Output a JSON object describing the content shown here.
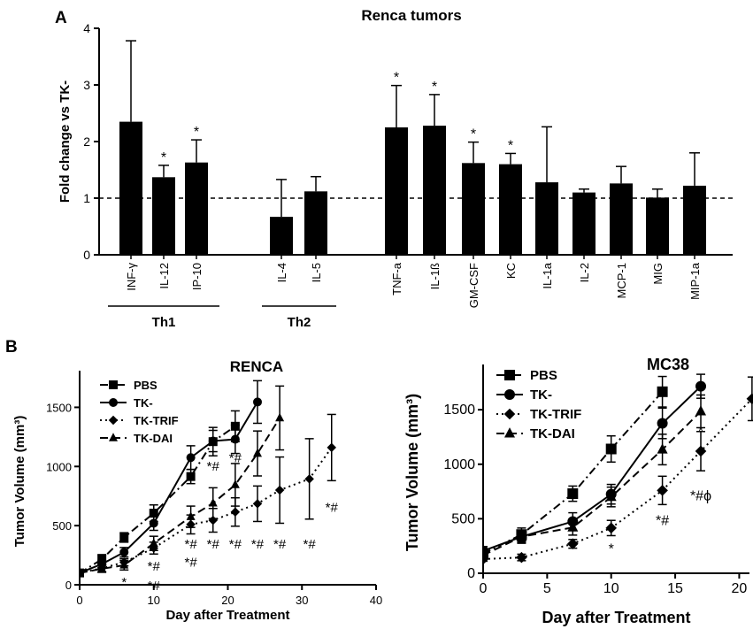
{
  "panel_labels": {
    "a": "A",
    "b": "B"
  },
  "chart_data": [
    {
      "type": "bar",
      "title": "Renca tumors",
      "ylabel": "Fold change vs TK-",
      "ylim": [
        0,
        4
      ],
      "yticks": [
        "0",
        "1",
        "2",
        "3",
        "4"
      ],
      "reference_line": 1,
      "categories": [
        "INF-γ",
        "IL-12",
        "IP-10",
        "IL-4",
        "IL-5",
        "TNF-a",
        "IL-1ß",
        "GM-CSF",
        "KC",
        "IL-1a",
        "IL-2",
        "MCP-1",
        "MIG",
        "MIP-1a"
      ],
      "values": [
        2.35,
        1.37,
        1.63,
        0.67,
        1.12,
        2.25,
        2.28,
        1.62,
        1.6,
        1.28,
        1.1,
        1.26,
        1.01,
        1.22
      ],
      "errors": [
        1.43,
        0.21,
        0.4,
        0.66,
        0.26,
        0.74,
        0.55,
        0.37,
        0.19,
        0.98,
        0.06,
        0.3,
        0.15,
        0.58
      ],
      "significant": [
        false,
        true,
        true,
        false,
        false,
        true,
        true,
        true,
        true,
        false,
        false,
        false,
        false,
        false
      ],
      "star": "*",
      "groups": [
        {
          "label": "Th1",
          "members": [
            "INF-γ",
            "IL-12",
            "IP-10"
          ]
        },
        {
          "label": "Th2",
          "members": [
            "IL-4",
            "IL-5"
          ]
        }
      ],
      "grid": false
    },
    {
      "type": "line",
      "title": "RENCA",
      "xlabel": "Day after Treatment",
      "ylabel": "Tumor Volume (mm³)",
      "xlim": [
        0,
        40
      ],
      "ylim": [
        0,
        1750
      ],
      "xticks": [
        "0",
        "10",
        "20",
        "30",
        "40"
      ],
      "yticks": [
        "0",
        "500",
        "1000",
        "1500"
      ],
      "legend_position": "top-left",
      "series": [
        {
          "name": "PBS",
          "marker": "square",
          "dash": "dash-dot",
          "x": [
            0,
            3,
            6,
            10,
            15,
            18,
            21
          ],
          "y": [
            100,
            215,
            400,
            605,
            915,
            1210,
            1340
          ],
          "err": [
            20,
            40,
            40,
            70,
            60,
            120,
            130
          ]
        },
        {
          "name": "TK-",
          "marker": "circle",
          "dash": "solid",
          "x": [
            0,
            3,
            6,
            10,
            15,
            18,
            21,
            24
          ],
          "y": [
            100,
            175,
            275,
            520,
            1075,
            1215,
            1230,
            1545
          ],
          "err": [
            20,
            30,
            40,
            60,
            100,
            90,
            120,
            180
          ]
        },
        {
          "name": "TK-TRIF",
          "marker": "diamond",
          "dash": "dotted",
          "x": [
            0,
            3,
            6,
            10,
            15,
            18,
            21,
            24,
            27,
            31,
            34
          ],
          "y": [
            100,
            140,
            190,
            310,
            510,
            545,
            615,
            685,
            800,
            895,
            1160
          ],
          "err": [
            20,
            30,
            30,
            50,
            80,
            100,
            120,
            150,
            280,
            340,
            280
          ]
        },
        {
          "name": "TK-DAI",
          "marker": "triangle",
          "dash": "dashed",
          "x": [
            0,
            3,
            6,
            10,
            15,
            18,
            21,
            24,
            27
          ],
          "y": [
            100,
            135,
            165,
            350,
            575,
            690,
            845,
            1110,
            1410
          ],
          "err": [
            20,
            30,
            40,
            60,
            90,
            130,
            180,
            190,
            270
          ]
        }
      ],
      "annotations": [
        {
          "text": "*",
          "x": 6,
          "y": 30
        },
        {
          "text": "*#",
          "x": 10,
          "y": 165
        },
        {
          "text": "*#",
          "x": 10,
          "y": 0
        },
        {
          "text": "*#",
          "x": 15,
          "y": 350
        },
        {
          "text": "*#",
          "x": 15,
          "y": 200
        },
        {
          "text": "*#",
          "x": 18,
          "y": 1010
        },
        {
          "text": "*#",
          "x": 18,
          "y": 350
        },
        {
          "text": "*#",
          "x": 21,
          "y": 1080
        },
        {
          "text": "*#",
          "x": 21,
          "y": 350
        },
        {
          "text": "*#",
          "x": 24,
          "y": 350
        },
        {
          "text": "*#",
          "x": 27,
          "y": 350
        },
        {
          "text": "*#",
          "x": 31,
          "y": 350
        },
        {
          "text": "*#",
          "x": 34,
          "y": 660
        }
      ],
      "grid": false
    },
    {
      "type": "line",
      "title": "MC38",
      "xlabel": "Day after Treatment",
      "ylabel": "Tumor Volume (mm³)",
      "xlim": [
        0,
        20.8
      ],
      "ylim": [
        0,
        1850
      ],
      "xticks": [
        "0",
        "5",
        "10",
        "15",
        "20"
      ],
      "yticks": [
        "0",
        "500",
        "1000",
        "1500"
      ],
      "legend_position": "top-left",
      "series": [
        {
          "name": "PBS",
          "marker": "square",
          "dash": "dash-dot",
          "x": [
            0,
            3,
            7,
            10,
            14
          ],
          "y": [
            180,
            355,
            730,
            1140,
            1665
          ],
          "err": [
            40,
            60,
            70,
            120,
            140
          ]
        },
        {
          "name": "TK-",
          "marker": "circle",
          "dash": "solid",
          "x": [
            0,
            3,
            7,
            10,
            14,
            17
          ],
          "y": [
            205,
            335,
            475,
            725,
            1375,
            1715
          ],
          "err": [
            40,
            60,
            80,
            90,
            140,
            110
          ]
        },
        {
          "name": "TK-TRIF",
          "marker": "diamond",
          "dash": "dotted",
          "x": [
            0,
            3,
            7,
            10,
            14,
            17,
            21
          ],
          "y": [
            130,
            145,
            270,
            415,
            760,
            1120,
            1600
          ],
          "err": [
            20,
            30,
            40,
            70,
            130,
            180,
            200
          ]
        },
        {
          "name": "TK-DAI",
          "marker": "triangle",
          "dash": "dashed",
          "x": [
            0,
            3,
            7,
            10,
            14,
            17
          ],
          "y": [
            165,
            335,
            420,
            700,
            1135,
            1485
          ],
          "err": [
            30,
            50,
            70,
            90,
            140,
            150
          ]
        }
      ],
      "annotations": [
        {
          "text": "*",
          "x": 10,
          "y": 230
        },
        {
          "text": "*#",
          "x": 14,
          "y": 490
        },
        {
          "text": "*",
          "x": 17,
          "y": 1310
        },
        {
          "text": "*#ϕ",
          "x": 17,
          "y": 720
        }
      ],
      "grid": false
    }
  ]
}
